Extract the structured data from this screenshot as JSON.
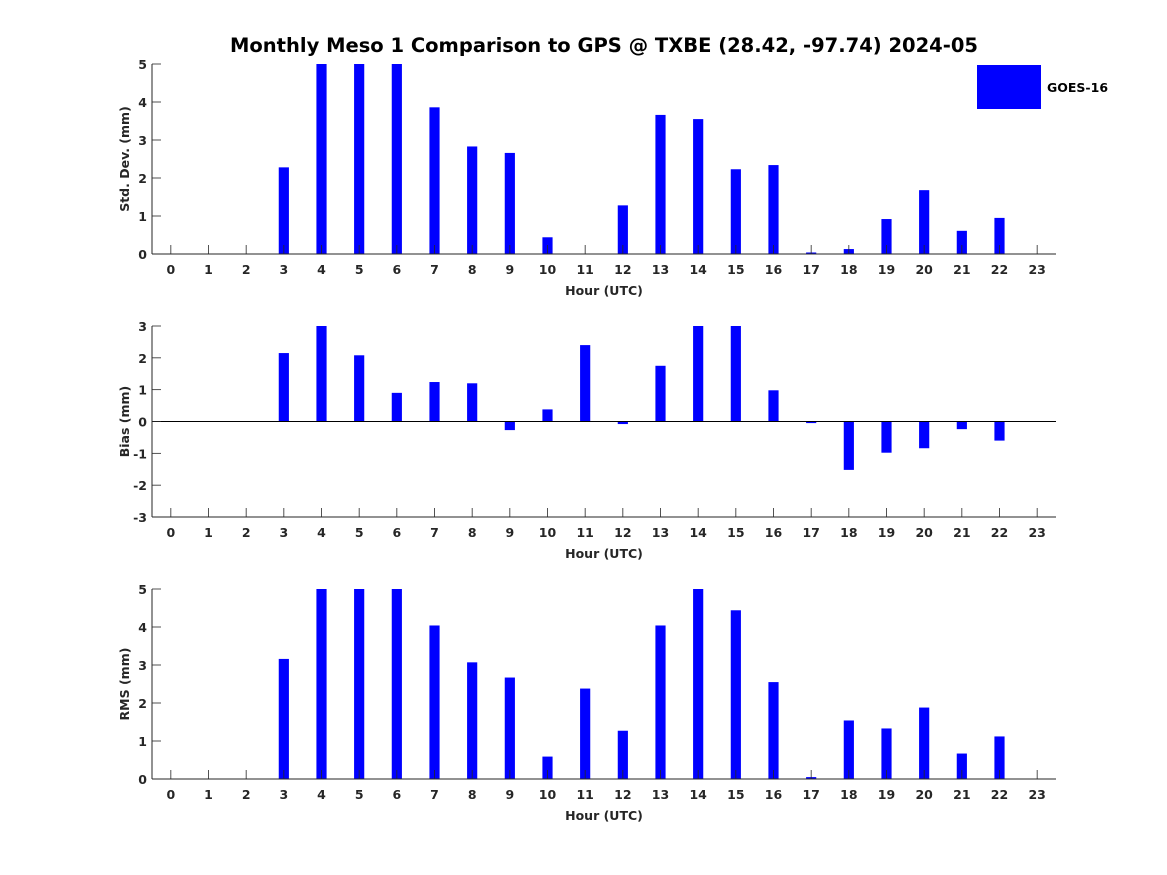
{
  "title": "Monthly Meso 1 Comparison to GPS @ TXBE (28.42, -97.74) 2024-05",
  "colors": {
    "bar": "#0000ff",
    "axis": "#262626",
    "background": "#ffffff"
  },
  "legend": {
    "label": "GOES-16",
    "position": "top-right"
  },
  "chart_data": [
    {
      "type": "bar",
      "xlabel": "Hour (UTC)",
      "ylabel": "Std. Dev. (mm)",
      "ylim": [
        0,
        5
      ],
      "yticks": [
        0,
        1,
        2,
        3,
        4,
        5
      ],
      "categories": [
        "0",
        "1",
        "2",
        "3",
        "4",
        "5",
        "6",
        "7",
        "8",
        "9",
        "10",
        "11",
        "12",
        "13",
        "14",
        "15",
        "16",
        "17",
        "18",
        "19",
        "20",
        "21",
        "22",
        "23"
      ],
      "series": [
        {
          "name": "GOES-16",
          "values": [
            0,
            0,
            0,
            2.28,
            5,
            5,
            5,
            3.86,
            2.83,
            2.66,
            0.44,
            0,
            1.28,
            3.66,
            3.55,
            2.23,
            2.34,
            0.04,
            0.13,
            0.92,
            1.68,
            0.61,
            0.95,
            0
          ]
        }
      ],
      "grid": false
    },
    {
      "type": "bar",
      "xlabel": "Hour (UTC)",
      "ylabel": "Bias (mm)",
      "ylim": [
        -3,
        3
      ],
      "yticks": [
        -3,
        -2,
        -1,
        0,
        1,
        2,
        3
      ],
      "categories": [
        "0",
        "1",
        "2",
        "3",
        "4",
        "5",
        "6",
        "7",
        "8",
        "9",
        "10",
        "11",
        "12",
        "13",
        "14",
        "15",
        "16",
        "17",
        "18",
        "19",
        "20",
        "21",
        "22",
        "23"
      ],
      "series": [
        {
          "name": "GOES-16",
          "values": [
            0,
            0,
            0,
            2.15,
            3,
            2.08,
            0.9,
            1.24,
            1.2,
            -0.27,
            0.38,
            2.4,
            -0.08,
            1.75,
            3,
            3,
            0.98,
            -0.05,
            -1.52,
            -0.98,
            -0.84,
            -0.24,
            -0.6,
            0
          ]
        }
      ],
      "grid": false
    },
    {
      "type": "bar",
      "xlabel": "Hour (UTC)",
      "ylabel": "RMS (mm)",
      "ylim": [
        0,
        5
      ],
      "yticks": [
        0,
        1,
        2,
        3,
        4,
        5
      ],
      "categories": [
        "0",
        "1",
        "2",
        "3",
        "4",
        "5",
        "6",
        "7",
        "8",
        "9",
        "10",
        "11",
        "12",
        "13",
        "14",
        "15",
        "16",
        "17",
        "18",
        "19",
        "20",
        "21",
        "22",
        "23"
      ],
      "series": [
        {
          "name": "GOES-16",
          "values": [
            0,
            0,
            0,
            3.16,
            5,
            5,
            5,
            4.04,
            3.07,
            2.67,
            0.59,
            2.38,
            1.27,
            4.04,
            5,
            4.44,
            2.55,
            0.05,
            1.54,
            1.33,
            1.88,
            0.67,
            1.12,
            0
          ]
        }
      ],
      "grid": false
    }
  ]
}
